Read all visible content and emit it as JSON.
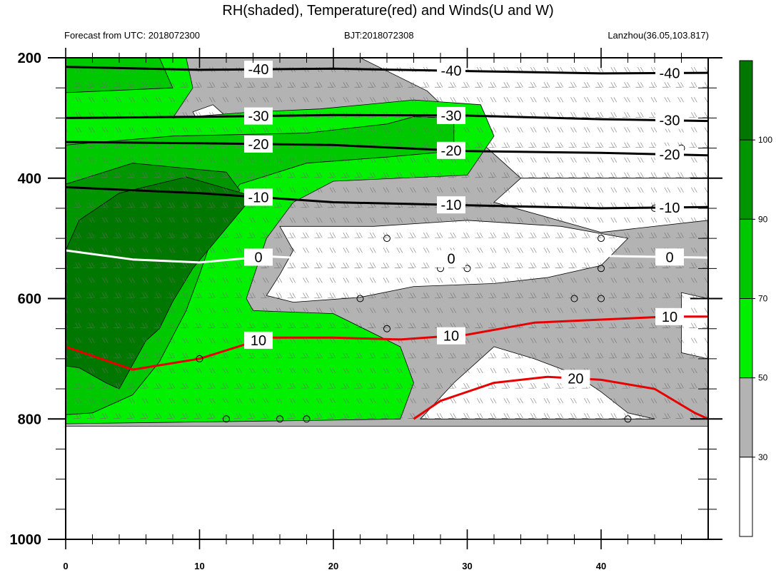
{
  "title": "RH(shaded), Temperature(red) and Winds(U and W)",
  "subtitle_left": "Forecast from UTC: 2018072300",
  "subtitle_center": "BJT:2018072308",
  "subtitle_right": "Lanzhou(36.05,103.817)",
  "chart_data": {
    "type": "contour",
    "xlim": [
      0,
      48
    ],
    "x_ticks": [
      0,
      10,
      20,
      30,
      40
    ],
    "ylim": [
      200,
      1000
    ],
    "y_ticks": [
      200,
      400,
      600,
      800,
      1000
    ],
    "y_inverted": true,
    "colorbar": {
      "levels": [
        30,
        50,
        70,
        90,
        100
      ],
      "tick_labels": [
        "30",
        "50",
        "70",
        "90",
        "100"
      ],
      "colors": [
        "#ffffff",
        "#b3b3b3",
        "#00f000",
        "#00c800",
        "#009600",
        "#007800"
      ]
    },
    "rh_regions": [
      {
        "level": 30,
        "color": "#b3b3b3",
        "points": [
          [
            0,
            200
          ],
          [
            48,
            200
          ],
          [
            48,
            812
          ],
          [
            0,
            812
          ]
        ]
      },
      {
        "level": 0,
        "color": "#ffffff",
        "points": [
          [
            22,
            200
          ],
          [
            48,
            200
          ],
          [
            48,
            400
          ],
          [
            34,
            400
          ],
          [
            31,
            340
          ],
          [
            27,
            255
          ]
        ]
      },
      {
        "level": 0,
        "color": "#ffffff",
        "points": [
          [
            34,
            400
          ],
          [
            48,
            400
          ],
          [
            48,
            470
          ],
          [
            40,
            490
          ],
          [
            32,
            440
          ]
        ]
      },
      {
        "level": 0,
        "color": "#ffffff",
        "points": [
          [
            16,
            480
          ],
          [
            23,
            480
          ],
          [
            30,
            470
          ],
          [
            37,
            480
          ],
          [
            42,
            500
          ],
          [
            40,
            545
          ],
          [
            36,
            565
          ],
          [
            32,
            575
          ],
          [
            26,
            580
          ],
          [
            22,
            598
          ],
          [
            17,
            606
          ],
          [
            15,
            595
          ],
          [
            16,
            560
          ],
          [
            17,
            520
          ]
        ]
      },
      {
        "level": 0,
        "color": "#ffffff",
        "points": [
          [
            32,
            680
          ],
          [
            35,
            700
          ],
          [
            38,
            725
          ],
          [
            40,
            755
          ],
          [
            42,
            790
          ],
          [
            44,
            800
          ],
          [
            30,
            800
          ],
          [
            26.5,
            800
          ],
          [
            29,
            740
          ]
        ]
      },
      {
        "level": 0,
        "color": "#ffffff",
        "points": [
          [
            46,
            590
          ],
          [
            48,
            600
          ],
          [
            48,
            700
          ],
          [
            46,
            690
          ],
          [
            46,
            640
          ]
        ]
      },
      {
        "level": 0,
        "color": "#ffffff",
        "points": [
          [
            9.5,
            290
          ],
          [
            11,
            278
          ],
          [
            12,
            298
          ],
          [
            10,
            310
          ]
        ]
      },
      {
        "level": 50,
        "color": "#00f000",
        "points": [
          [
            0,
            200
          ],
          [
            9,
            200
          ],
          [
            9.5,
            250
          ],
          [
            8,
            300
          ],
          [
            14,
            290
          ],
          [
            19,
            285
          ],
          [
            26,
            270
          ],
          [
            31,
            278
          ],
          [
            32,
            330
          ],
          [
            30,
            395
          ],
          [
            20,
            405
          ],
          [
            17,
            440
          ],
          [
            15,
            500
          ],
          [
            13.5,
            600
          ],
          [
            14,
            620
          ],
          [
            20,
            625
          ],
          [
            25,
            680
          ],
          [
            26,
            740
          ],
          [
            25,
            800
          ],
          [
            20,
            802
          ],
          [
            10,
            805
          ],
          [
            0,
            808
          ]
        ]
      },
      {
        "level": 70,
        "color": "#00c800",
        "points": [
          [
            0,
            200
          ],
          [
            7,
            200
          ],
          [
            8,
            250
          ],
          [
            0,
            258
          ]
        ]
      },
      {
        "level": 70,
        "color": "#00c800",
        "points": [
          [
            0,
            345
          ],
          [
            8,
            330
          ],
          [
            18,
            325
          ],
          [
            24,
            310
          ],
          [
            26,
            298
          ],
          [
            29,
            300
          ],
          [
            29,
            355
          ],
          [
            24,
            365
          ],
          [
            18,
            375
          ],
          [
            13,
            410
          ],
          [
            12,
            445
          ],
          [
            11,
            495
          ],
          [
            10,
            560
          ],
          [
            9,
            620
          ],
          [
            7,
            705
          ],
          [
            5,
            760
          ],
          [
            2,
            790
          ],
          [
            0,
            793
          ]
        ]
      },
      {
        "level": 90,
        "color": "#009600",
        "points": [
          [
            0,
            410
          ],
          [
            5,
            375
          ],
          [
            12,
            390
          ],
          [
            13,
            420
          ],
          [
            11,
            500
          ],
          [
            8,
            540
          ],
          [
            6,
            570
          ],
          [
            4,
            650
          ],
          [
            2,
            690
          ],
          [
            0,
            702
          ]
        ]
      },
      {
        "level": 100,
        "color": "#007800",
        "points": [
          [
            0,
            520
          ],
          [
            1,
            470
          ],
          [
            4,
            425
          ],
          [
            9,
            398
          ],
          [
            14,
            430
          ],
          [
            12.5,
            470
          ],
          [
            9.5,
            550
          ],
          [
            8,
            605
          ],
          [
            7,
            650
          ],
          [
            6,
            670
          ],
          [
            4,
            750
          ],
          [
            3,
            740
          ],
          [
            1,
            715
          ],
          [
            0,
            712
          ]
        ]
      }
    ],
    "temperature_contours": [
      {
        "value": -40,
        "label": "-40",
        "color": "#000000",
        "points": [
          [
            0,
            215
          ],
          [
            10,
            220
          ],
          [
            20,
            218
          ],
          [
            30,
            222
          ],
          [
            40,
            226
          ],
          [
            48,
            225
          ]
        ]
      },
      {
        "value": -30,
        "label": "-30",
        "color": "#000000",
        "points": [
          [
            0,
            300
          ],
          [
            10,
            298
          ],
          [
            20,
            295
          ],
          [
            30,
            296
          ],
          [
            40,
            302
          ],
          [
            48,
            305
          ]
        ]
      },
      {
        "value": -20,
        "label": "-20",
        "color": "#000000",
        "points": [
          [
            0,
            340
          ],
          [
            10,
            342
          ],
          [
            20,
            345
          ],
          [
            30,
            355
          ],
          [
            40,
            358
          ],
          [
            48,
            362
          ]
        ]
      },
      {
        "value": -10,
        "label": "-10",
        "color": "#000000",
        "points": [
          [
            0,
            415
          ],
          [
            10,
            425
          ],
          [
            20,
            440
          ],
          [
            30,
            445
          ],
          [
            40,
            450
          ],
          [
            48,
            448
          ]
        ]
      },
      {
        "value": 0,
        "label": "0",
        "color": "#ffffff",
        "points": [
          [
            0,
            520
          ],
          [
            5,
            535
          ],
          [
            10,
            540
          ],
          [
            15,
            530
          ],
          [
            20,
            535
          ],
          [
            25,
            540
          ],
          [
            30,
            532
          ],
          [
            38,
            528
          ],
          [
            42,
            530
          ],
          [
            48,
            532
          ]
        ]
      },
      {
        "value": 10,
        "label": "10",
        "color": "#e60000",
        "points": [
          [
            0,
            680
          ],
          [
            5,
            718
          ],
          [
            10,
            700
          ],
          [
            15,
            665
          ],
          [
            20,
            665
          ],
          [
            25,
            668
          ],
          [
            30,
            660
          ],
          [
            35,
            640
          ],
          [
            40,
            635
          ],
          [
            45,
            630
          ],
          [
            48,
            630
          ]
        ]
      },
      {
        "value": 20,
        "label": "20",
        "color": "#e60000",
        "points": [
          [
            26,
            800
          ],
          [
            28,
            770
          ],
          [
            32,
            740
          ],
          [
            36,
            730
          ],
          [
            40,
            735
          ],
          [
            44,
            750
          ],
          [
            47,
            790
          ],
          [
            48,
            800
          ]
        ]
      }
    ],
    "calm_markers": [
      {
        "x": 46,
        "y": 350
      },
      {
        "x": 44,
        "y": 450
      },
      {
        "x": 24,
        "y": 500
      },
      {
        "x": 40,
        "y": 500
      },
      {
        "x": 28,
        "y": 550
      },
      {
        "x": 30,
        "y": 550
      },
      {
        "x": 40,
        "y": 550
      },
      {
        "x": 22,
        "y": 600
      },
      {
        "x": 38,
        "y": 600
      },
      {
        "x": 40,
        "y": 600
      },
      {
        "x": 24,
        "y": 650
      },
      {
        "x": 10,
        "y": 700
      },
      {
        "x": 12,
        "y": 800
      },
      {
        "x": 16,
        "y": 800
      },
      {
        "x": 18,
        "y": 800
      },
      {
        "x": 42,
        "y": 800
      }
    ]
  }
}
